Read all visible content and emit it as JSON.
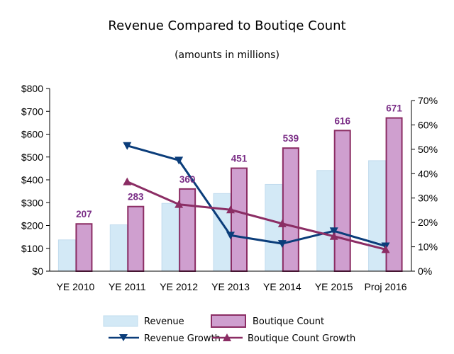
{
  "chart_data": {
    "type": "bar",
    "title": "Revenue Compared to Boutiqe Count",
    "subtitle": "(amounts in millions)",
    "categories": [
      "YE 2010",
      "YE 2011",
      "YE 2012",
      "YE 2013",
      "YE 2014",
      "YE 2015",
      "Proj 2016"
    ],
    "left_axis": {
      "ylim": [
        0,
        800
      ],
      "ticks": [
        0,
        100,
        200,
        300,
        400,
        500,
        600,
        700,
        800
      ],
      "tick_labels": [
        "$0",
        "$100",
        "$200",
        "$300",
        "$400",
        "$500",
        "$600",
        "$700",
        "$800"
      ]
    },
    "right_axis": {
      "ylim": [
        0,
        0.7
      ],
      "ticks": [
        0,
        0.1,
        0.2,
        0.3,
        0.4,
        0.5,
        0.6,
        0.7
      ],
      "tick_labels": [
        "0%",
        "10%",
        "20%",
        "30%",
        "40%",
        "50%",
        "60%",
        "70%"
      ]
    },
    "series": [
      {
        "name": "Revenue",
        "type": "bar",
        "axis": "left",
        "color": "#d3e9f6",
        "border": "#c2dcee",
        "values": [
          137,
          203,
          297,
          340,
          380,
          441,
          484
        ]
      },
      {
        "name": "Boutique Count",
        "type": "bar",
        "axis": "left",
        "color": "#cf9fcf",
        "border": "#8b2d64",
        "values": [
          207,
          283,
          360,
          451,
          539,
          616,
          671
        ],
        "data_labels": [
          "207",
          "283",
          "360",
          "451",
          "539",
          "616",
          "671"
        ]
      },
      {
        "name": "Revenue Growth",
        "type": "line",
        "axis": "right",
        "color": "#0b3d7a",
        "marker": "triangle-down",
        "values": [
          null,
          0.515,
          0.455,
          0.147,
          0.113,
          0.165,
          0.103
        ]
      },
      {
        "name": "Boutique Count Growth",
        "type": "line",
        "axis": "right",
        "color": "#8b2d64",
        "marker": "triangle-up",
        "values": [
          null,
          0.367,
          0.274,
          0.252,
          0.195,
          0.143,
          0.089
        ]
      }
    ],
    "grid": false,
    "legend": "bottom"
  }
}
